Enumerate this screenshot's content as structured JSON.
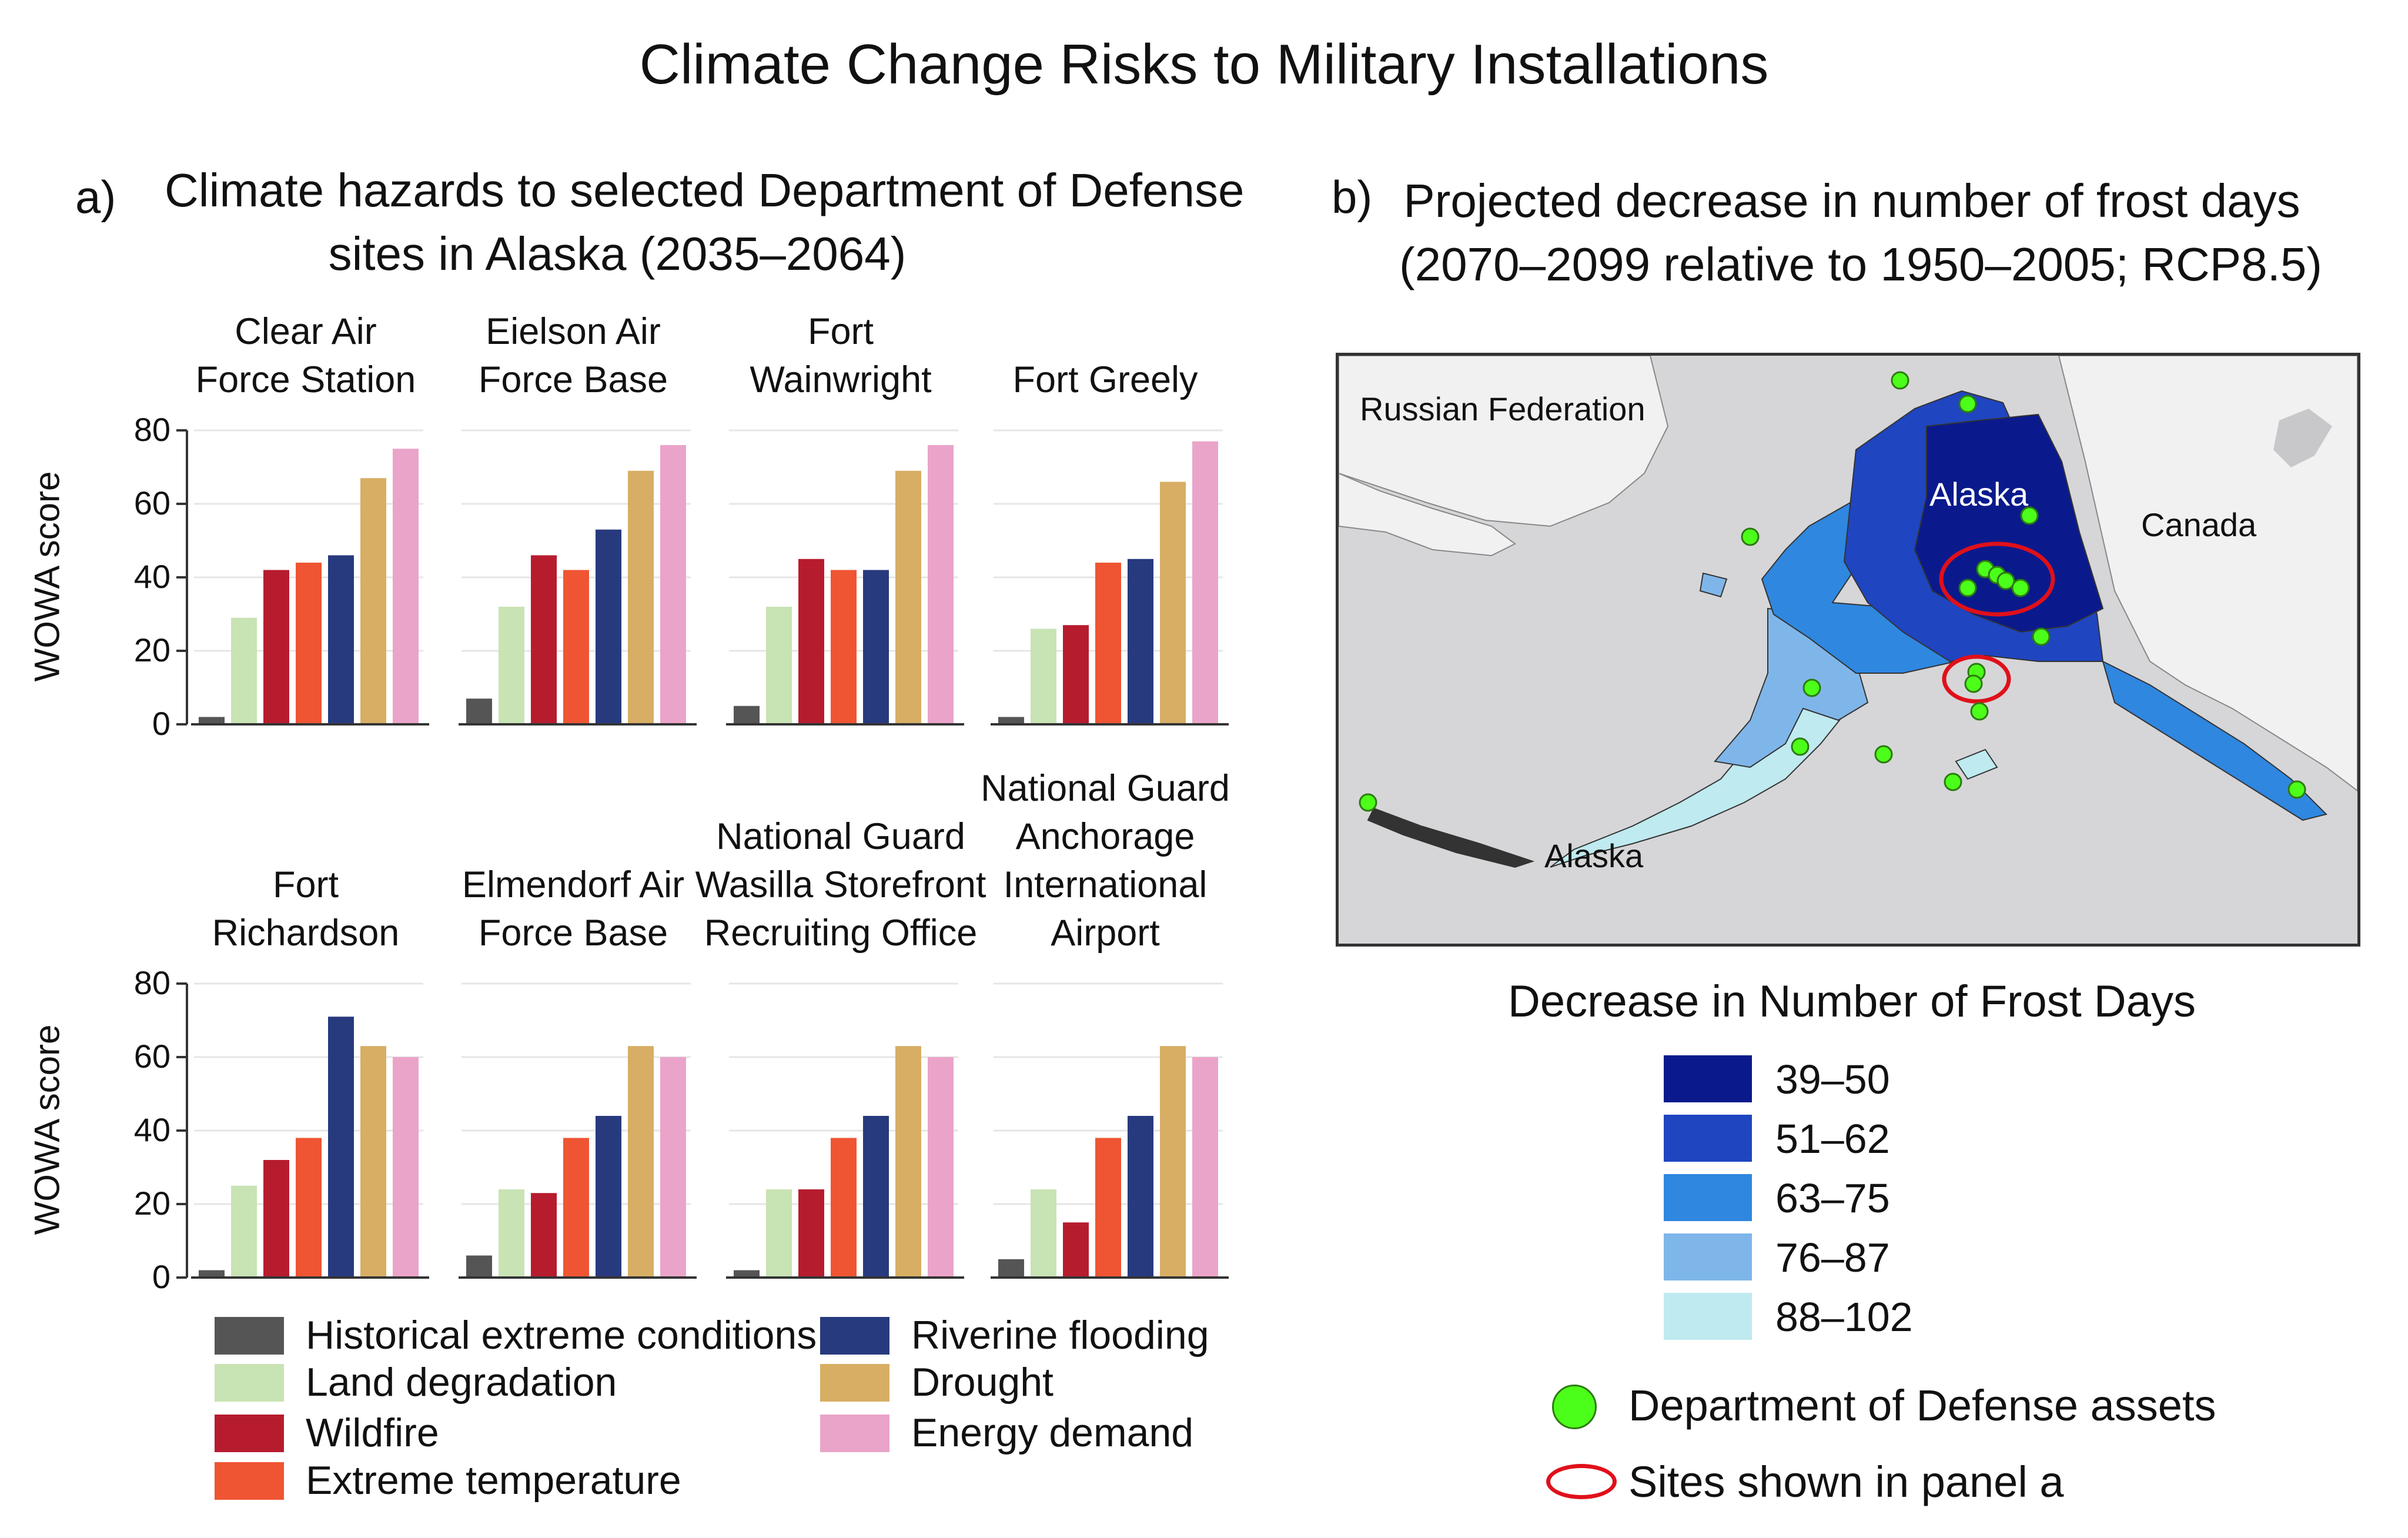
{
  "title": "Climate Change Risks to Military Installations",
  "panel_a": {
    "letter": "a)",
    "title_line1": "Climate hazards to selected Department of Defense",
    "title_line2": "sites in Alaska (2035–2064)"
  },
  "panel_b": {
    "letter": "b)",
    "title_line1": "Projected decrease in number of frost days",
    "title_line2": "(2070–2099 relative to 1950–2005; RCP8.5)"
  },
  "map": {
    "labels": {
      "russia": "Russian Federation",
      "alaska_north": "Alaska",
      "canada": "Canada",
      "alaska_south": "Alaska"
    }
  },
  "frost_legend": {
    "title": "Decrease in Number of Frost Days",
    "bins": [
      {
        "label": "39–50",
        "color": "#0a1a8c"
      },
      {
        "label": "51–62",
        "color": "#1f45c0"
      },
      {
        "label": "63–75",
        "color": "#2f87e0"
      },
      {
        "label": "76–87",
        "color": "#7fb6ea"
      },
      {
        "label": "88–102",
        "color": "#bfeaf0"
      }
    ],
    "assets_label": "Department of Defense assets",
    "sites_label": "Sites shown in panel a",
    "asset_color": "#4cff1a",
    "site_ring_color": "#e0101a"
  },
  "chart_data": {
    "type": "bar",
    "ylabel": "WOWA score",
    "ylim": [
      0,
      80
    ],
    "yticks": [
      0,
      20,
      40,
      60,
      80
    ],
    "hazards": [
      {
        "name": "Historical extreme conditions",
        "color": "#555555"
      },
      {
        "name": "Land degradation",
        "color": "#c8e3b4"
      },
      {
        "name": "Wildfire",
        "color": "#b71c2e"
      },
      {
        "name": "Extreme temperature",
        "color": "#ef5533"
      },
      {
        "name": "Riverine flooding",
        "color": "#283a7e"
      },
      {
        "name": "Drought",
        "color": "#d7ae64"
      },
      {
        "name": "Energy demand",
        "color": "#eaa4c9"
      }
    ],
    "sites": [
      {
        "name_lines": [
          "Clear Air",
          "Force Station"
        ],
        "values": [
          2,
          29,
          42,
          44,
          46,
          67,
          75
        ]
      },
      {
        "name_lines": [
          "Eielson Air",
          "Force Base"
        ],
        "values": [
          7,
          32,
          46,
          42,
          53,
          69,
          76
        ]
      },
      {
        "name_lines": [
          "Fort",
          "Wainwright"
        ],
        "values": [
          5,
          32,
          45,
          42,
          42,
          69,
          76
        ]
      },
      {
        "name_lines": [
          "Fort Greely"
        ],
        "values": [
          2,
          26,
          27,
          44,
          45,
          66,
          77
        ]
      },
      {
        "name_lines": [
          "Fort",
          "Richardson"
        ],
        "values": [
          2,
          25,
          32,
          38,
          71,
          63,
          60
        ]
      },
      {
        "name_lines": [
          "Elmendorf Air",
          "Force Base"
        ],
        "values": [
          6,
          24,
          23,
          38,
          44,
          63,
          60
        ]
      },
      {
        "name_lines": [
          "National Guard",
          "Wasilla Storefront",
          "Recruiting Office"
        ],
        "values": [
          2,
          24,
          24,
          38,
          44,
          63,
          60
        ]
      },
      {
        "name_lines": [
          "National Guard",
          "Anchorage",
          "International",
          "Airport"
        ],
        "values": [
          5,
          24,
          15,
          38,
          44,
          63,
          60
        ]
      }
    ]
  }
}
